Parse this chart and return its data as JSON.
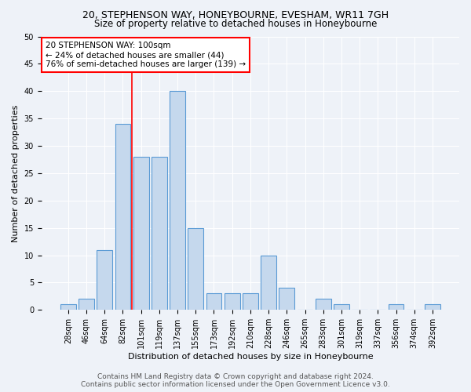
{
  "title1": "20, STEPHENSON WAY, HONEYBOURNE, EVESHAM, WR11 7GH",
  "title2": "Size of property relative to detached houses in Honeybourne",
  "xlabel": "Distribution of detached houses by size in Honeybourne",
  "ylabel": "Number of detached properties",
  "bin_labels": [
    "28sqm",
    "46sqm",
    "64sqm",
    "82sqm",
    "101sqm",
    "119sqm",
    "137sqm",
    "155sqm",
    "173sqm",
    "192sqm",
    "210sqm",
    "228sqm",
    "246sqm",
    "265sqm",
    "283sqm",
    "301sqm",
    "319sqm",
    "337sqm",
    "356sqm",
    "374sqm",
    "392sqm"
  ],
  "bar_values": [
    1,
    2,
    11,
    34,
    28,
    28,
    40,
    15,
    3,
    3,
    3,
    10,
    4,
    0,
    2,
    1,
    0,
    0,
    1,
    0,
    1
  ],
  "bar_color": "#c5d8ed",
  "bar_edge_color": "#5b9bd5",
  "annotation_text": "20 STEPHENSON WAY: 100sqm\n← 24% of detached houses are smaller (44)\n76% of semi-detached houses are larger (139) →",
  "annotation_box_color": "white",
  "annotation_box_edge_color": "red",
  "vline_color": "red",
  "ylim": [
    0,
    50
  ],
  "yticks": [
    0,
    5,
    10,
    15,
    20,
    25,
    30,
    35,
    40,
    45,
    50
  ],
  "background_color": "#eef2f8",
  "footer_line1": "Contains HM Land Registry data © Crown copyright and database right 2024.",
  "footer_line2": "Contains public sector information licensed under the Open Government Licence v3.0.",
  "title1_fontsize": 9,
  "title2_fontsize": 8.5,
  "annotation_fontsize": 7.5,
  "axis_label_fontsize": 8,
  "tick_fontsize": 7,
  "footer_fontsize": 6.5
}
